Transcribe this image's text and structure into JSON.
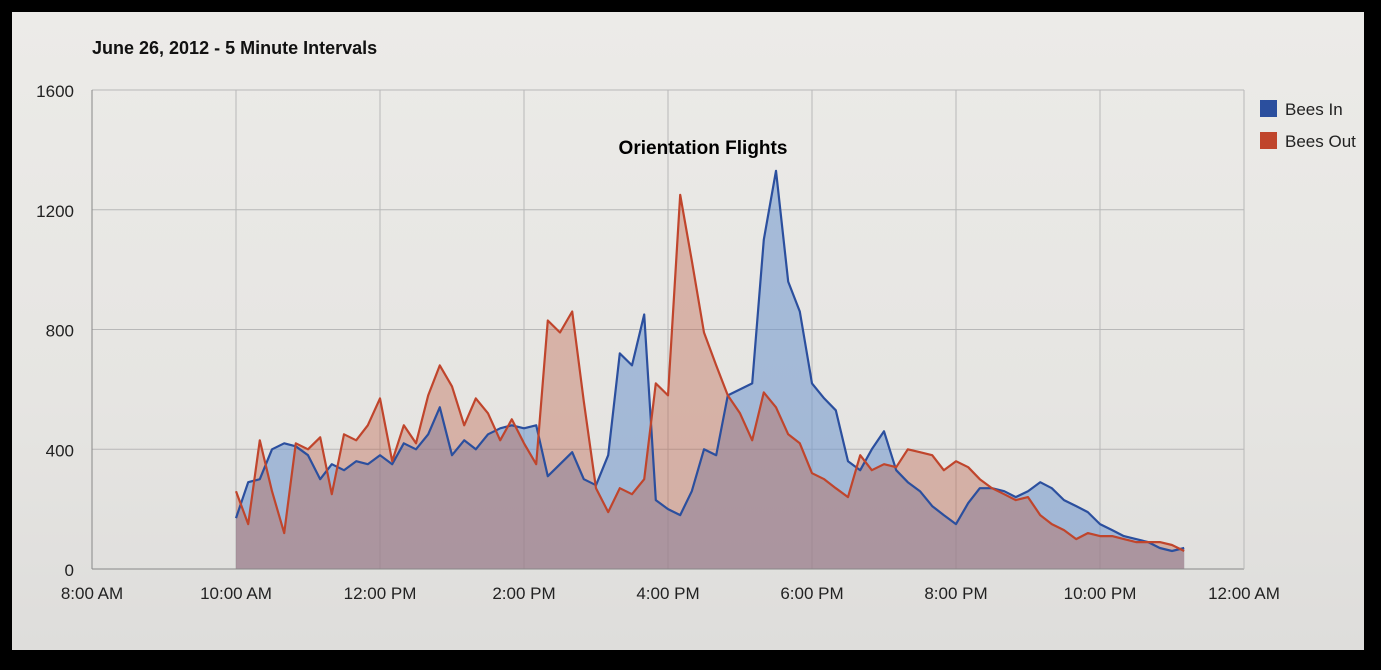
{
  "chart_data": {
    "type": "area",
    "title": "June 26, 2012 - 5 Minute Intervals",
    "xlabel": "",
    "ylabel": "",
    "x_ticks": [
      "8:00 AM",
      "10:00 AM",
      "12:00 PM",
      "2:00 PM",
      "4:00 PM",
      "6:00 PM",
      "8:00 PM",
      "10:00 PM",
      "12:00 AM"
    ],
    "x_range_hours": [
      8,
      24
    ],
    "ylim": [
      0,
      1600
    ],
    "y_ticks": [
      0,
      400,
      800,
      1200,
      1600
    ],
    "grid": true,
    "legend_position": "top-right",
    "annotation": "Orientation Flights",
    "series": [
      {
        "name": "Bees In",
        "color": "#2b4f9e",
        "points": [
          [
            10.0,
            170
          ],
          [
            10.17,
            290
          ],
          [
            10.33,
            300
          ],
          [
            10.5,
            400
          ],
          [
            10.67,
            420
          ],
          [
            10.83,
            410
          ],
          [
            11.0,
            380
          ],
          [
            11.17,
            300
          ],
          [
            11.33,
            350
          ],
          [
            11.5,
            330
          ],
          [
            11.67,
            360
          ],
          [
            11.83,
            350
          ],
          [
            12.0,
            380
          ],
          [
            12.17,
            350
          ],
          [
            12.33,
            420
          ],
          [
            12.5,
            400
          ],
          [
            12.67,
            450
          ],
          [
            12.83,
            540
          ],
          [
            13.0,
            380
          ],
          [
            13.17,
            430
          ],
          [
            13.33,
            400
          ],
          [
            13.5,
            450
          ],
          [
            13.67,
            470
          ],
          [
            13.83,
            480
          ],
          [
            14.0,
            470
          ],
          [
            14.17,
            480
          ],
          [
            14.33,
            310
          ],
          [
            14.5,
            350
          ],
          [
            14.67,
            390
          ],
          [
            14.83,
            300
          ],
          [
            15.0,
            280
          ],
          [
            15.17,
            380
          ],
          [
            15.33,
            720
          ],
          [
            15.5,
            680
          ],
          [
            15.67,
            850
          ],
          [
            15.83,
            230
          ],
          [
            16.0,
            200
          ],
          [
            16.17,
            180
          ],
          [
            16.33,
            260
          ],
          [
            16.5,
            400
          ],
          [
            16.67,
            380
          ],
          [
            16.83,
            580
          ],
          [
            17.0,
            600
          ],
          [
            17.17,
            620
          ],
          [
            17.33,
            1100
          ],
          [
            17.5,
            1330
          ],
          [
            17.67,
            960
          ],
          [
            17.83,
            860
          ],
          [
            18.0,
            620
          ],
          [
            18.17,
            570
          ],
          [
            18.33,
            530
          ],
          [
            18.5,
            360
          ],
          [
            18.67,
            330
          ],
          [
            18.83,
            400
          ],
          [
            19.0,
            460
          ],
          [
            19.17,
            330
          ],
          [
            19.33,
            290
          ],
          [
            19.5,
            260
          ],
          [
            19.67,
            210
          ],
          [
            19.83,
            180
          ],
          [
            20.0,
            150
          ],
          [
            20.17,
            220
          ],
          [
            20.33,
            270
          ],
          [
            20.5,
            270
          ],
          [
            20.67,
            260
          ],
          [
            20.83,
            240
          ],
          [
            21.0,
            260
          ],
          [
            21.17,
            290
          ],
          [
            21.33,
            270
          ],
          [
            21.5,
            230
          ],
          [
            21.67,
            210
          ],
          [
            21.83,
            190
          ],
          [
            22.0,
            150
          ],
          [
            22.17,
            130
          ],
          [
            22.33,
            110
          ],
          [
            22.5,
            100
          ],
          [
            22.67,
            90
          ],
          [
            22.83,
            70
          ],
          [
            23.0,
            60
          ],
          [
            23.17,
            70
          ]
        ]
      },
      {
        "name": "Bees Out",
        "color": "#c0452c",
        "points": [
          [
            10.0,
            260
          ],
          [
            10.17,
            150
          ],
          [
            10.33,
            430
          ],
          [
            10.5,
            260
          ],
          [
            10.67,
            120
          ],
          [
            10.83,
            420
          ],
          [
            11.0,
            400
          ],
          [
            11.17,
            440
          ],
          [
            11.33,
            250
          ],
          [
            11.5,
            450
          ],
          [
            11.67,
            430
          ],
          [
            11.83,
            480
          ],
          [
            12.0,
            570
          ],
          [
            12.17,
            360
          ],
          [
            12.33,
            480
          ],
          [
            12.5,
            420
          ],
          [
            12.67,
            580
          ],
          [
            12.83,
            680
          ],
          [
            13.0,
            610
          ],
          [
            13.17,
            480
          ],
          [
            13.33,
            570
          ],
          [
            13.5,
            520
          ],
          [
            13.67,
            430
          ],
          [
            13.83,
            500
          ],
          [
            14.0,
            420
          ],
          [
            14.17,
            350
          ],
          [
            14.33,
            830
          ],
          [
            14.5,
            790
          ],
          [
            14.67,
            860
          ],
          [
            14.83,
            560
          ],
          [
            15.0,
            270
          ],
          [
            15.17,
            190
          ],
          [
            15.33,
            270
          ],
          [
            15.5,
            250
          ],
          [
            15.67,
            300
          ],
          [
            15.83,
            620
          ],
          [
            16.0,
            580
          ],
          [
            16.17,
            1250
          ],
          [
            16.33,
            1030
          ],
          [
            16.5,
            790
          ],
          [
            16.67,
            680
          ],
          [
            16.83,
            580
          ],
          [
            17.0,
            520
          ],
          [
            17.17,
            430
          ],
          [
            17.33,
            590
          ],
          [
            17.5,
            540
          ],
          [
            17.67,
            450
          ],
          [
            17.83,
            420
          ],
          [
            18.0,
            320
          ],
          [
            18.17,
            300
          ],
          [
            18.33,
            270
          ],
          [
            18.5,
            240
          ],
          [
            18.67,
            380
          ],
          [
            18.83,
            330
          ],
          [
            19.0,
            350
          ],
          [
            19.17,
            340
          ],
          [
            19.33,
            400
          ],
          [
            19.5,
            390
          ],
          [
            19.67,
            380
          ],
          [
            19.83,
            330
          ],
          [
            20.0,
            360
          ],
          [
            20.17,
            340
          ],
          [
            20.33,
            300
          ],
          [
            20.5,
            270
          ],
          [
            20.67,
            250
          ],
          [
            20.83,
            230
          ],
          [
            21.0,
            240
          ],
          [
            21.17,
            180
          ],
          [
            21.33,
            150
          ],
          [
            21.5,
            130
          ],
          [
            21.67,
            100
          ],
          [
            21.83,
            120
          ],
          [
            22.0,
            110
          ],
          [
            22.17,
            110
          ],
          [
            22.33,
            100
          ],
          [
            22.5,
            90
          ],
          [
            22.67,
            90
          ],
          [
            22.83,
            90
          ],
          [
            23.0,
            80
          ],
          [
            23.17,
            60
          ]
        ]
      }
    ]
  }
}
